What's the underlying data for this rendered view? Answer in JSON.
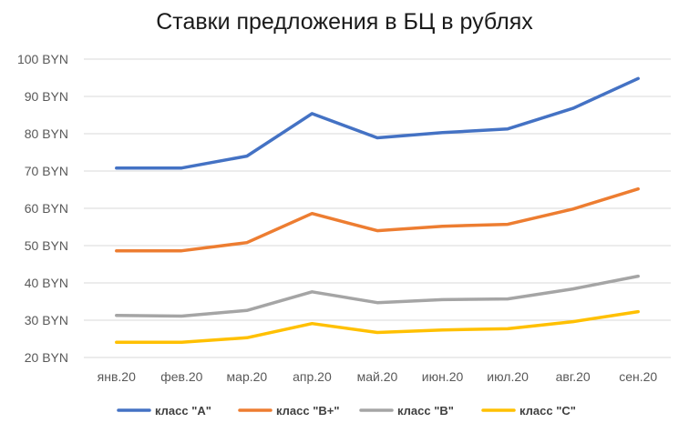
{
  "chart_data": {
    "type": "line",
    "title": "Ставки предложения в БЦ в рублях",
    "xlabel": "",
    "ylabel": "",
    "ylim": [
      20,
      100
    ],
    "yticks": [
      20,
      30,
      40,
      50,
      60,
      70,
      80,
      90,
      100
    ],
    "ytick_labels": [
      "20 BYN",
      "30 BYN",
      "40 BYN",
      "50 BYN",
      "60 BYN",
      "70 BYN",
      "80 BYN",
      "90 BYN",
      "100 BYN"
    ],
    "categories": [
      "янв.20",
      "фев.20",
      "мар.20",
      "апр.20",
      "май.20",
      "июн.20",
      "июл.20",
      "авг.20",
      "сен.20"
    ],
    "grid": true,
    "legend_position": "bottom",
    "series": [
      {
        "name": "класс \"А\"",
        "color": "#4472C4",
        "values": [
          70.8,
          70.8,
          74,
          85.4,
          78.9,
          80.3,
          81.3,
          86.8,
          94.8
        ]
      },
      {
        "name": "класс \"В+\"",
        "color": "#ED7D31",
        "values": [
          48.6,
          48.6,
          50.8,
          58.6,
          54,
          55.2,
          55.7,
          59.8,
          65.2
        ]
      },
      {
        "name": "класс \"В\"",
        "color": "#A5A5A5",
        "values": [
          31.3,
          31.1,
          32.6,
          37.6,
          34.7,
          35.5,
          35.7,
          38.4,
          41.8
        ]
      },
      {
        "name": "класс \"С\"",
        "color": "#FFC000",
        "values": [
          24.1,
          24.1,
          25.3,
          29.1,
          26.7,
          27.4,
          27.7,
          29.6,
          32.3
        ]
      }
    ]
  }
}
